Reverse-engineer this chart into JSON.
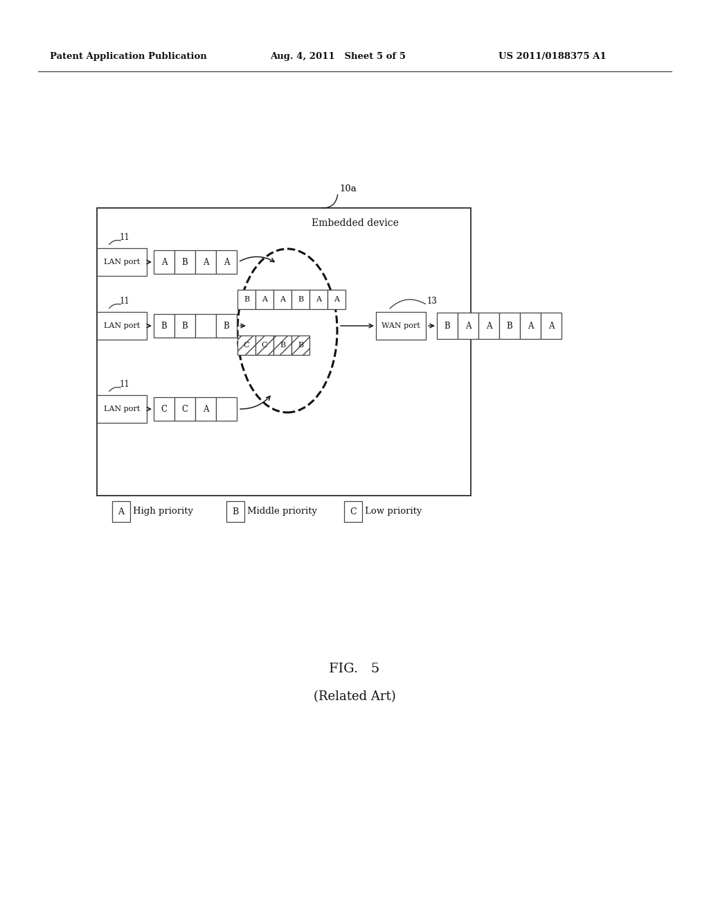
{
  "header_left": "Patent Application Publication",
  "header_mid": "Aug. 4, 2011   Sheet 5 of 5",
  "header_right": "US 2011/0188375 A1",
  "fig_label": "FIG.   5",
  "fig_sublabel": "(Related Art)",
  "label_10a": "10a",
  "label_11": "11",
  "label_13": "13",
  "embedded_label": "Embedded device",
  "lan_label": "LAN port",
  "wan_label": "WAN port",
  "legend_items": [
    {
      "letter": "A",
      "text": "High priority"
    },
    {
      "letter": "B",
      "text": "Middle priority"
    },
    {
      "letter": "C",
      "text": "Low priority"
    }
  ],
  "queue1": [
    "A",
    "B",
    "A",
    "A"
  ],
  "queue2": [
    "B",
    "B",
    "",
    "B"
  ],
  "queue3": [
    "C",
    "C",
    "A",
    ""
  ],
  "inner_top": [
    "B",
    "A",
    "A",
    "B",
    "A",
    "A"
  ],
  "inner_bot": [
    "C",
    "C",
    "B",
    "B"
  ],
  "output_row": [
    "B",
    "A",
    "A",
    "B",
    "A",
    "A"
  ]
}
